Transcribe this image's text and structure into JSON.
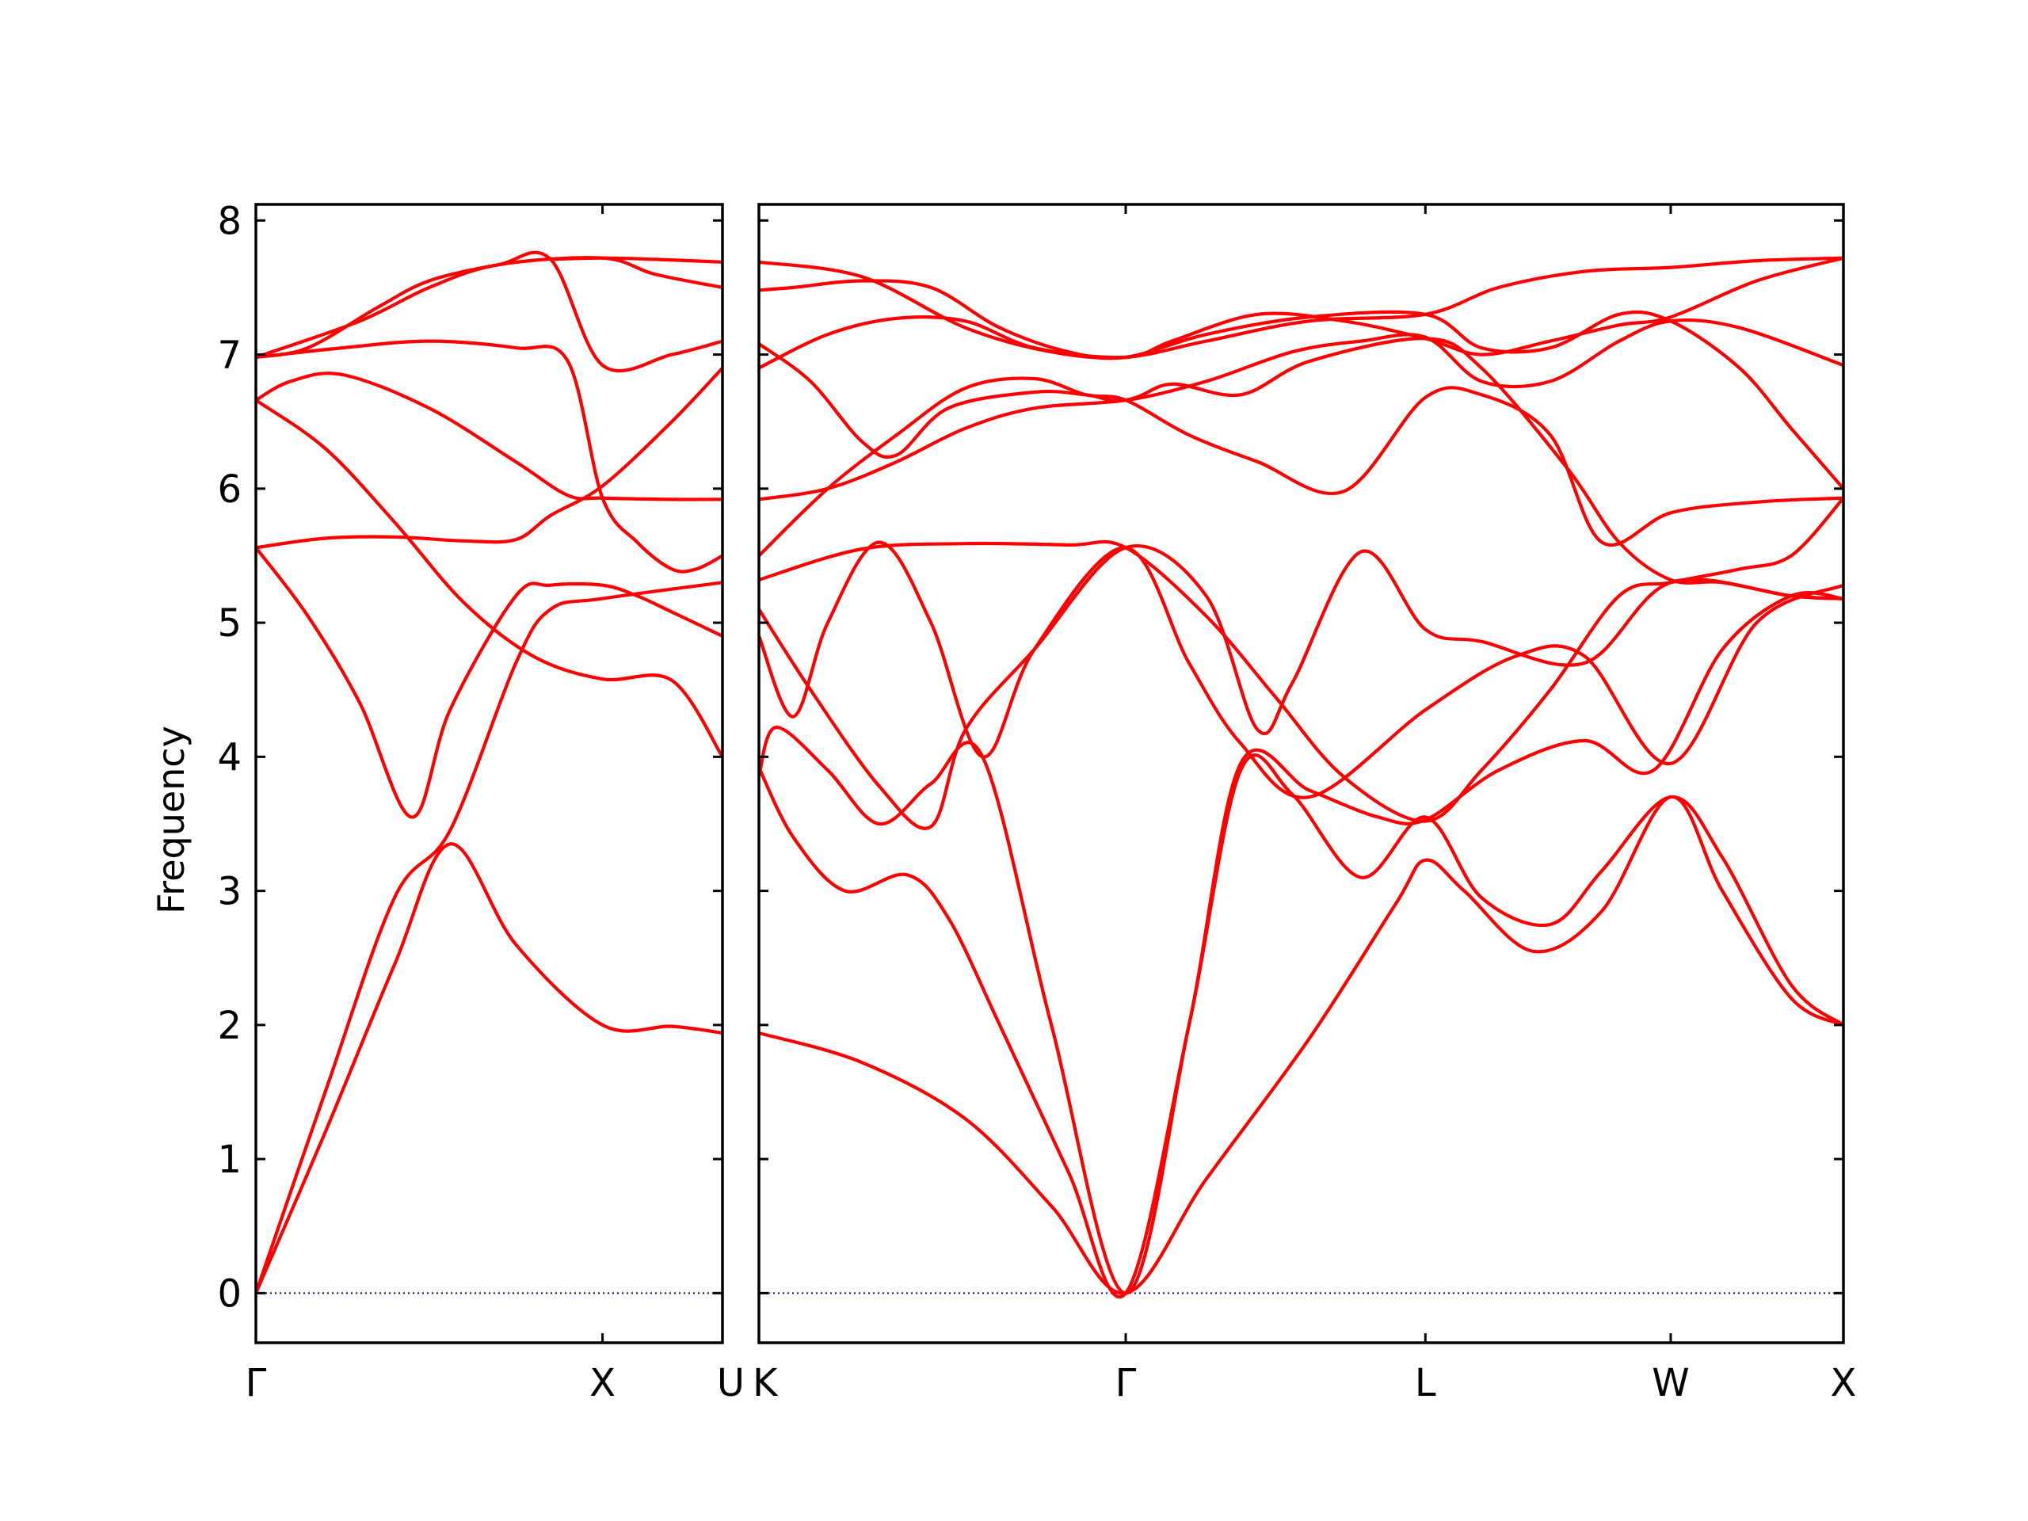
{
  "chart_data": {
    "type": "line",
    "ylabel": "Frequency",
    "xlabel": "",
    "ylim": [
      -0.37,
      8.12
    ],
    "yticks": [
      0,
      1,
      2,
      3,
      4,
      5,
      6,
      7,
      8
    ],
    "colors": {
      "bands": "#ff0000",
      "zero_line": "#0000bb",
      "frame": "#000000"
    },
    "grid": false,
    "path_labels": [
      "Γ",
      "X",
      "U|K",
      "Γ",
      "L",
      "W",
      "X"
    ],
    "panels": [
      {
        "name": "Γ-X-U",
        "xlim": [
          0,
          1.346
        ],
        "ticks": [
          {
            "x": 0,
            "label": "Γ"
          },
          {
            "x": 1.0,
            "label": "X"
          },
          {
            "x": 1.346,
            "label": "U"
          }
        ],
        "series": [
          {
            "x": [
              0,
              0.2,
              0.4,
              0.56,
              0.75,
              1.0,
              1.2,
              1.346
            ],
            "y": [
              0,
              1.2,
              2.45,
              3.35,
              2.6,
              2.0,
              1.99,
              1.94
            ]
          },
          {
            "x": [
              0,
              0.2,
              0.4,
              0.56,
              0.75,
              0.85,
              1.0,
              1.346
            ],
            "y": [
              0,
              1.5,
              2.95,
              3.45,
              4.7,
              5.1,
              5.18,
              5.3
            ]
          },
          {
            "x": [
              0,
              0.15,
              0.3,
              0.45,
              0.56,
              0.75,
              0.85,
              1.0,
              1.1,
              1.2,
              1.346
            ],
            "y": [
              5.56,
              5.05,
              4.4,
              3.55,
              4.35,
              5.2,
              5.28,
              5.28,
              5.2,
              5.08,
              4.9
            ]
          },
          {
            "x": [
              0,
              0.2,
              0.4,
              0.6,
              0.75,
              0.85,
              1.0,
              1.2,
              1.346
            ],
            "y": [
              5.56,
              5.63,
              5.64,
              5.61,
              5.62,
              5.8,
              6.02,
              6.5,
              6.9
            ]
          },
          {
            "x": [
              0,
              0.2,
              0.4,
              0.6,
              0.8,
              1.0,
              1.2,
              1.346
            ],
            "y": [
              6.66,
              6.3,
              5.75,
              5.15,
              4.75,
              4.58,
              4.57,
              4.0
            ]
          },
          {
            "x": [
              0,
              0.1,
              0.25,
              0.5,
              0.75,
              0.9,
              1.0,
              1.2,
              1.346
            ],
            "y": [
              6.66,
              6.8,
              6.85,
              6.6,
              6.2,
              5.95,
              5.93,
              5.92,
              5.92
            ]
          },
          {
            "x": [
              0,
              0.25,
              0.5,
              0.75,
              0.9,
              1.0,
              1.1,
              1.2,
              1.27,
              1.346
            ],
            "y": [
              6.98,
              7.05,
              7.1,
              7.05,
              6.95,
              5.93,
              5.6,
              5.4,
              5.4,
              5.5
            ]
          },
          {
            "x": [
              0,
              0.15,
              0.35,
              0.5,
              0.7,
              0.85,
              1.0,
              1.2,
              1.346
            ],
            "y": [
              6.98,
              7.05,
              7.35,
              7.55,
              7.67,
              7.71,
              6.92,
              7.0,
              7.1
            ]
          },
          {
            "x": [
              0,
              0.3,
              0.5,
              0.7,
              1.0,
              1.15,
              1.346
            ],
            "y": [
              6.98,
              7.25,
              7.5,
              7.67,
              7.72,
              7.6,
              7.5
            ]
          },
          {
            "x": [
              0.85,
              1.0,
              1.15,
              1.346
            ],
            "y": [
              7.71,
              7.72,
              7.71,
              7.69
            ]
          }
        ]
      },
      {
        "name": "K-Γ-L-W-X",
        "xlim": [
          0,
          3.152
        ],
        "ticks": [
          {
            "x": 0,
            "label": "K"
          },
          {
            "x": 1.066,
            "label": "Γ"
          },
          {
            "x": 1.937,
            "label": "L"
          },
          {
            "x": 2.65,
            "label": "W"
          },
          {
            "x": 3.152,
            "label": "X"
          }
        ],
        "series": [
          {
            "x": [
              0,
              0.3,
              0.6,
              0.85,
              1.066,
              1.3,
              1.6,
              1.85,
              1.937,
              2.05,
              2.25,
              2.45,
              2.65,
              2.8,
              3.0,
              3.152
            ],
            "y": [
              1.94,
              1.72,
              1.3,
              0.65,
              0,
              0.85,
              1.9,
              2.9,
              3.23,
              3.0,
              2.55,
              2.85,
              3.7,
              3.0,
              2.2,
              2.0
            ]
          },
          {
            "x": [
              0,
              0.1,
              0.25,
              0.43,
              0.55,
              0.7,
              0.9,
              1.066,
              1.25,
              1.4,
              1.55,
              1.75,
              1.937,
              2.1,
              2.3,
              2.45,
              2.65,
              2.8,
              3.0,
              3.152
            ],
            "y": [
              3.92,
              3.4,
              3.0,
              3.12,
              2.8,
              2.0,
              0.9,
              0,
              2.0,
              3.9,
              3.72,
              3.1,
              3.55,
              2.95,
              2.75,
              3.15,
              3.7,
              3.25,
              2.3,
              2.0
            ]
          },
          {
            "x": [
              0,
              0.05,
              0.2,
              0.35,
              0.5,
              0.65,
              0.85,
              1.066,
              1.25,
              1.4,
              1.6,
              1.8,
              1.937,
              2.15,
              2.4,
              2.6,
              2.8,
              3.0,
              3.152
            ],
            "y": [
              3.86,
              4.22,
              3.9,
              3.5,
              3.8,
              4.0,
              2.0,
              0,
              2.0,
              3.95,
              3.75,
              3.55,
              3.53,
              3.9,
              4.12,
              3.9,
              4.8,
              5.2,
              5.18
            ]
          },
          {
            "x": [
              0,
              0.1,
              0.2,
              0.35,
              0.5,
              0.65,
              0.8,
              1.066,
              1.25,
              1.4,
              1.6,
              1.937,
              2.2,
              2.4,
              2.65,
              2.9,
              3.152
            ],
            "y": [
              4.9,
              4.3,
              5.0,
              5.6,
              5.0,
              4.0,
              4.8,
              5.56,
              4.7,
              4.1,
              3.7,
              4.35,
              4.75,
              4.75,
              3.95,
              5.0,
              5.28
            ]
          },
          {
            "x": [
              0,
              0.15,
              0.35,
              0.5,
              0.6,
              0.8,
              1.066,
              1.3,
              1.45,
              1.55,
              1.75,
              1.937,
              2.1,
              2.4,
              2.65,
              3.0,
              3.152
            ],
            "y": [
              5.1,
              4.5,
              3.78,
              3.48,
              4.2,
              4.8,
              5.56,
              5.2,
              4.2,
              4.55,
              5.53,
              4.95,
              4.86,
              4.7,
              5.3,
              5.2,
              5.18
            ]
          },
          {
            "x": [
              0,
              0.3,
              0.6,
              0.9,
              1.066,
              1.3,
              1.5,
              1.7,
              1.937,
              2.1,
              2.3,
              2.5,
              2.65,
              2.85,
              3.0,
              3.152
            ],
            "y": [
              5.32,
              5.55,
              5.59,
              5.58,
              5.56,
              5.05,
              4.45,
              3.85,
              3.52,
              3.9,
              4.5,
              5.2,
              5.3,
              5.4,
              5.5,
              5.93
            ]
          },
          {
            "x": [
              0,
              0.2,
              0.4,
              0.6,
              0.8,
              0.95,
              1.066,
              1.25,
              1.45,
              1.7,
              1.937,
              2.1,
              2.3,
              2.45,
              2.65,
              2.9,
              3.152
            ],
            "y": [
              5.5,
              6.0,
              6.4,
              6.75,
              6.82,
              6.7,
              6.66,
              6.4,
              6.2,
              5.98,
              6.68,
              6.7,
              6.4,
              5.6,
              5.82,
              5.9,
              5.93
            ]
          },
          {
            "x": [
              0,
              0.2,
              0.4,
              0.6,
              0.8,
              1.066,
              1.2,
              1.4,
              1.6,
              1.937,
              2.1,
              2.35,
              2.5,
              2.65,
              2.8,
              3.0,
              3.152
            ],
            "y": [
              5.92,
              6.0,
              6.2,
              6.45,
              6.6,
              6.66,
              6.78,
              6.7,
              6.95,
              7.12,
              6.9,
              6.15,
              5.6,
              5.32,
              5.3,
              5.2,
              5.18
            ]
          },
          {
            "x": [
              0,
              0.15,
              0.3,
              0.4,
              0.55,
              0.8,
              0.95,
              1.066,
              1.3,
              1.55,
              1.75,
              1.937,
              2.1,
              2.3,
              2.5,
              2.65,
              2.85,
              3.152
            ],
            "y": [
              7.08,
              6.8,
              6.35,
              6.25,
              6.6,
              6.72,
              6.7,
              6.66,
              6.8,
              7.02,
              7.1,
              7.13,
              6.8,
              6.8,
              7.1,
              7.25,
              7.2,
              6.92
            ]
          },
          {
            "x": [
              0,
              0.2,
              0.4,
              0.6,
              0.8,
              1.066,
              1.2,
              1.45,
              1.7,
              1.937,
              2.1,
              2.3,
              2.5,
              2.65,
              2.9,
              3.152
            ],
            "y": [
              6.9,
              7.15,
              7.27,
              7.25,
              7.05,
              6.98,
              7.1,
              7.3,
              7.25,
              7.12,
              7.0,
              7.1,
              7.22,
              7.28,
              7.55,
              7.72
            ]
          },
          {
            "x": [
              0,
              0.1,
              0.3,
              0.5,
              0.7,
              0.9,
              1.066,
              1.3,
              1.6,
              1.937,
              2.1,
              2.3,
              2.5,
              2.65,
              2.85,
              3.0,
              3.152
            ],
            "y": [
              7.48,
              7.5,
              7.55,
              7.5,
              7.2,
              7.02,
              6.98,
              7.15,
              7.28,
              7.3,
              7.05,
              7.05,
              7.3,
              7.25,
              6.9,
              6.45,
              6.0
            ]
          },
          {
            "x": [
              0,
              0.3,
              0.6,
              0.85,
              1.066,
              1.3,
              1.6,
              1.937,
              2.15,
              2.4,
              2.65,
              2.9,
              3.152
            ],
            "y": [
              7.69,
              7.58,
              7.2,
              7.02,
              6.98,
              7.1,
              7.25,
              7.3,
              7.5,
              7.62,
              7.65,
              7.7,
              7.72
            ]
          }
        ]
      }
    ]
  }
}
